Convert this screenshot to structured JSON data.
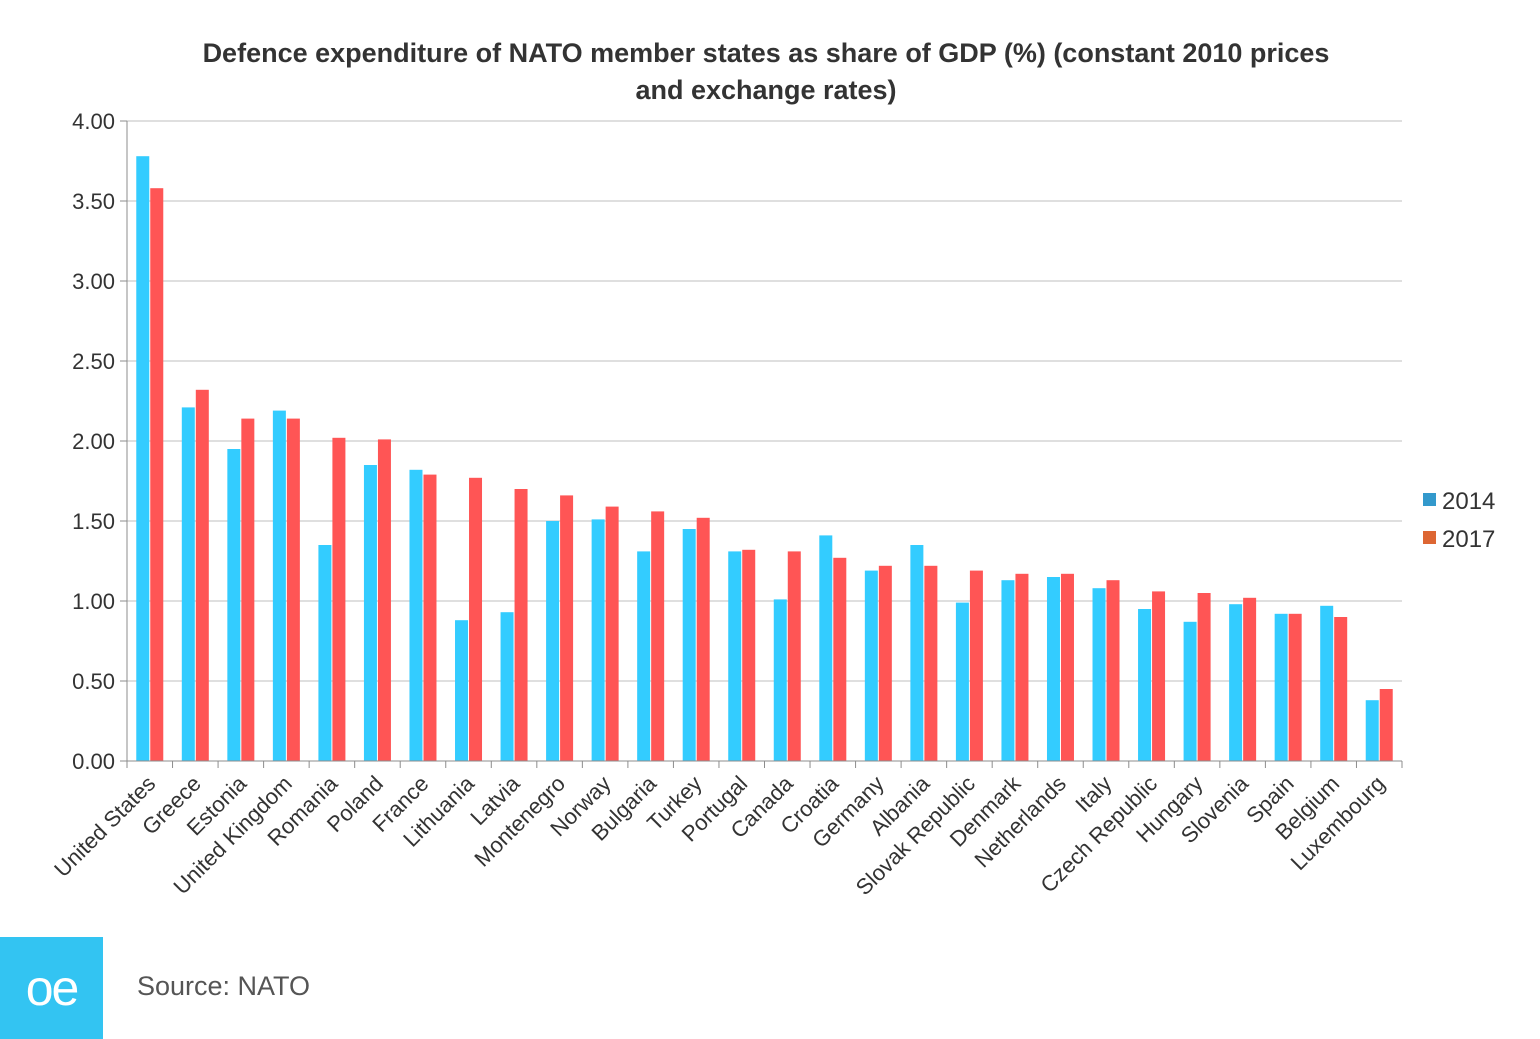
{
  "colors": {
    "series_2014": "#33ccff",
    "series_2017": "#ff5555",
    "legend_2014": "#3399cc",
    "legend_2017": "#dd6633",
    "gridline": "#bfbfbf",
    "axis": "#8c8c8c",
    "brand": "#33c4f2"
  },
  "brand": {
    "logo_text": "oe",
    "source_text": "Source: NATO"
  },
  "chart_data": {
    "type": "bar",
    "title_lines": [
      "Defence expenditure of NATO member states as share of GDP (%) (constant 2010 prices",
      "and exchange rates)"
    ],
    "xlabel": "",
    "ylabel": "",
    "ylim": [
      0,
      4
    ],
    "yticks": [
      "0.00",
      "0.50",
      "1.00",
      "1.50",
      "2.00",
      "2.50",
      "3.00",
      "3.50",
      "4.00"
    ],
    "grid": true,
    "legend_position": "right",
    "categories": [
      "United States",
      "Greece",
      "Estonia",
      "United Kingdom",
      "Romania",
      "Poland",
      "France",
      "Lithuania",
      "Latvia",
      "Montenegro",
      "Norway",
      "Bulgaria",
      "Turkey",
      "Portugal",
      "Canada",
      "Croatia",
      "Germany",
      "Albania",
      "Slovak Republic",
      "Denmark",
      "Netherlands",
      "Italy",
      "Czech Republic",
      "Hungary",
      "Slovenia",
      "Spain",
      "Belgium",
      "Luxembourg"
    ],
    "series": [
      {
        "name": "2014",
        "values": [
          3.78,
          2.21,
          1.95,
          2.19,
          1.35,
          1.85,
          1.82,
          0.88,
          0.93,
          1.5,
          1.51,
          1.31,
          1.45,
          1.31,
          1.01,
          1.41,
          1.19,
          1.35,
          0.99,
          1.13,
          1.15,
          1.08,
          0.95,
          0.87,
          0.98,
          0.92,
          0.97,
          0.38
        ]
      },
      {
        "name": "2017",
        "values": [
          3.58,
          2.32,
          2.14,
          2.14,
          2.02,
          2.01,
          1.79,
          1.77,
          1.7,
          1.66,
          1.59,
          1.56,
          1.52,
          1.32,
          1.31,
          1.27,
          1.22,
          1.22,
          1.19,
          1.17,
          1.17,
          1.13,
          1.06,
          1.05,
          1.02,
          0.92,
          0.9,
          0.45
        ]
      }
    ]
  }
}
